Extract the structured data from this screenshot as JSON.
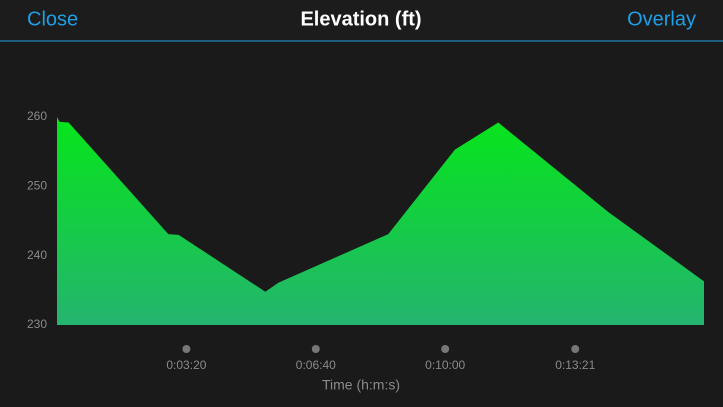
{
  "header": {
    "left": "Close",
    "title": "Elevation (ft)",
    "right": "Overlay"
  },
  "chart_data": {
    "type": "area",
    "x": [
      0,
      4,
      18,
      172,
      188,
      322,
      342,
      512,
      615,
      682,
      852,
      1000
    ],
    "values": [
      260,
      259.3,
      259.2,
      243.1,
      243,
      234.8,
      236.1,
      243.1,
      255.3,
      259.2,
      246.3,
      236.3
    ],
    "gradient": [
      "#06e51a",
      "#24b46f"
    ],
    "xlim": [
      0,
      1000
    ],
    "xticks": [
      {
        "value": 200,
        "label": "0:03:20"
      },
      {
        "value": 400,
        "label": "0:06:40"
      },
      {
        "value": 600,
        "label": "0:10:00"
      },
      {
        "value": 801,
        "label": "0:13:21"
      }
    ],
    "ylim": [
      230,
      260
    ],
    "yticks": [
      230,
      240,
      250,
      260
    ],
    "x_label": "Time (h:m:s)"
  }
}
